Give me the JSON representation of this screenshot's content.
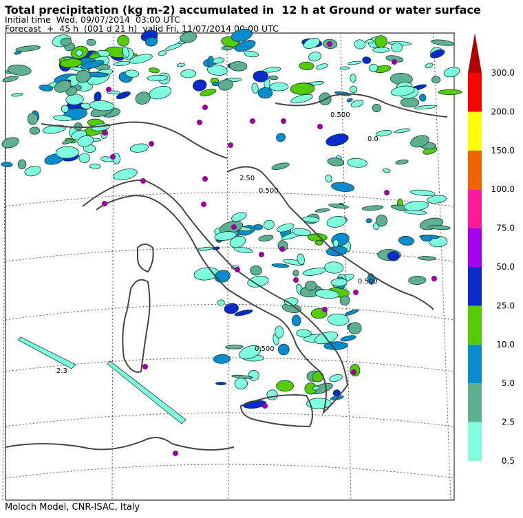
{
  "header": {
    "title": "Total precipitation (kg m-2) accumulated in  12 h at Ground or water surface",
    "initial": "Initial time  Wed, 09/07/2014  03:00 UTC",
    "forecast": "Forecast  +  45 h  (001 d 21 h)  valid Fri, 11/07/2014 00:00 UTC"
  },
  "colorbar": {
    "labels": [
      "0.5",
      "2.5",
      "5.0",
      "10.0",
      "25.0",
      "50.0",
      "75.0",
      "100.0",
      "150.0",
      "200.0",
      "300.0"
    ],
    "colors": [
      "#80ffdc",
      "#5fb090",
      "#0a8ccc",
      "#55cc00",
      "#0a2acc",
      "#a400f0",
      "#ff1a9a",
      "#f06400",
      "#ffff00",
      "#ff0000"
    ],
    "over_color": "#b00000"
  },
  "map": {
    "contour_labels": [
      "2.3",
      "0.500",
      "2.50",
      "0.500",
      "0.0",
      "0.500",
      "0.500"
    ]
  },
  "footer": "Moloch Model, CNR-ISAC, Italy"
}
